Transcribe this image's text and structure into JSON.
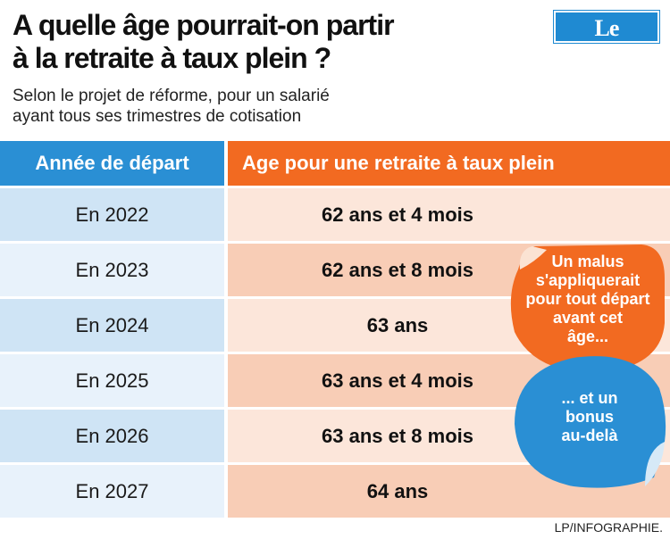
{
  "header": {
    "title_line1": "A quelle âge pourrait-on partir",
    "title_line2": "à la retraite à taux plein ?",
    "subtitle_line1": "Selon le projet de réforme, pour un salarié",
    "subtitle_line2": "ayant tous ses trimestres de cotisation",
    "logo": "Le Parisien"
  },
  "colors": {
    "blue_header": "#2a8fd4",
    "orange_header": "#f26a21",
    "blue_light": "#cfe4f5",
    "blue_pale": "#e8f2fb",
    "peach": "#f8cdb6",
    "peach_pale": "#fce6da"
  },
  "chart_data": {
    "type": "table",
    "columns": [
      "Année de départ",
      "Age pour une retraite à taux plein"
    ],
    "rows": [
      [
        "En 2022",
        "62 ans et 4 mois"
      ],
      [
        "En 2023",
        "62 ans et 8 mois"
      ],
      [
        "En 2024",
        "63 ans"
      ],
      [
        "En 2025",
        "63 ans et 4 mois"
      ],
      [
        "En 2026",
        "63 ans et 8 mois"
      ],
      [
        "En 2027",
        "64 ans"
      ]
    ],
    "annotations": [
      {
        "color": "orange",
        "lines": [
          "Un malus",
          "s'appliquerait",
          "pour tout départ",
          "avant cet",
          "âge..."
        ]
      },
      {
        "color": "blue",
        "lines": [
          "... et un",
          "bonus",
          "au-delà"
        ]
      }
    ]
  },
  "footer": {
    "credit": "LP/INFOGRAPHIE."
  }
}
